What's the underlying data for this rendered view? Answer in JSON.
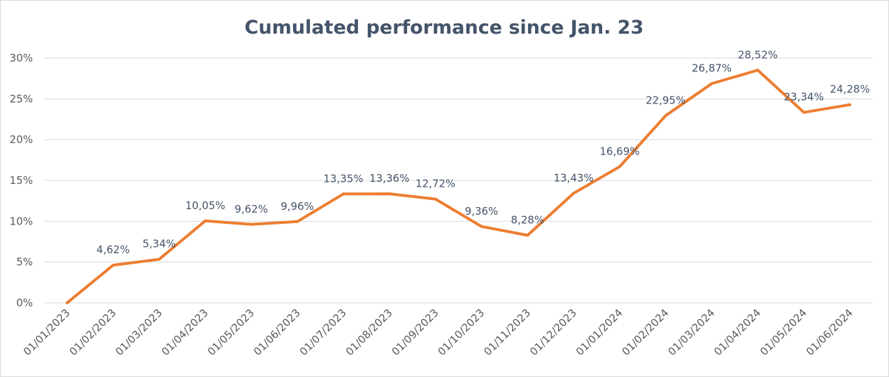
{
  "chart_data": {
    "type": "line",
    "title": "Cumulated performance since Jan. 23",
    "xlabel": "",
    "ylabel": "",
    "categories": [
      "01/01/2023",
      "01/02/2023",
      "01/03/2023",
      "01/04/2023",
      "01/05/2023",
      "01/06/2023",
      "01/07/2023",
      "01/08/2023",
      "01/09/2023",
      "01/10/2023",
      "01/11/2023",
      "01/12/2023",
      "01/01/2024",
      "01/02/2024",
      "01/03/2024",
      "01/04/2024",
      "01/05/2024",
      "01/06/2024"
    ],
    "series": [
      {
        "values": [
          0,
          4.62,
          5.34,
          10.05,
          9.62,
          9.96,
          13.35,
          13.36,
          12.72,
          9.36,
          8.28,
          13.43,
          16.69,
          22.95,
          26.87,
          28.52,
          23.34,
          24.28
        ],
        "labels": [
          "",
          "4,62%",
          "5,34%",
          "10,05%",
          "9,62%",
          "9,96%",
          "13,35%",
          "13,36%",
          "12,72%",
          "9,36%",
          "8,28%",
          "13,43%",
          "16,69%",
          "22,95%",
          "26,87%",
          "28,52%",
          "23,34%",
          "24,28%"
        ],
        "color": "#ed7d31"
      }
    ],
    "ylim": [
      0,
      30
    ],
    "yticks": [
      0,
      5,
      10,
      15,
      20,
      25,
      30
    ],
    "ytick_labels": [
      "0%",
      "5%",
      "10%",
      "15%",
      "20%",
      "25%",
      "30%"
    ],
    "grid": true,
    "legend": "none"
  }
}
